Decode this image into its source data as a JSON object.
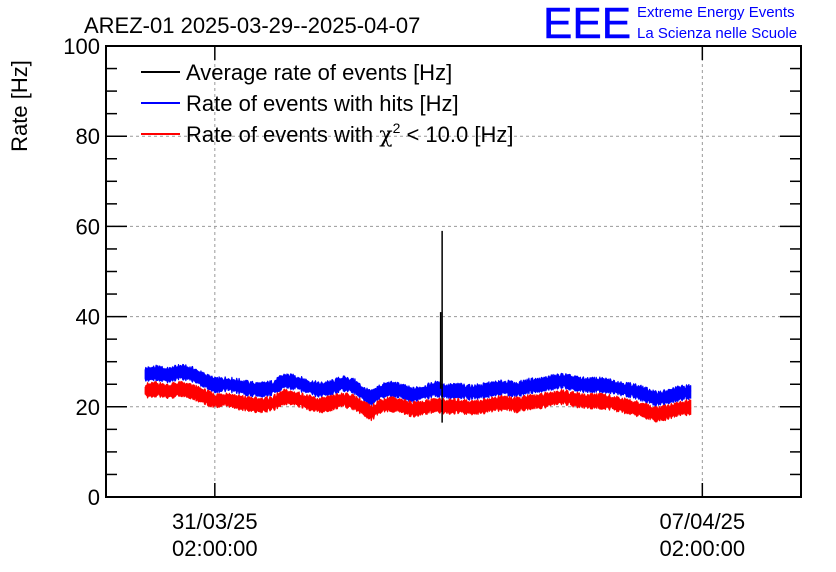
{
  "chart_data": {
    "type": "line",
    "title": "AREZ-01 2025-03-29--2025-04-07",
    "ylabel": "Rate [Hz]",
    "xlabel": "",
    "ylim": [
      0,
      100
    ],
    "yticks": [
      0,
      20,
      40,
      60,
      80,
      100
    ],
    "xlim": [
      "2025-03-29T12:30:00",
      "2025-04-08T12:00:00"
    ],
    "xticks": [
      {
        "date": "2025-03-31T02:00:00",
        "line1": "31/03/25",
        "line2": "02:00:00"
      },
      {
        "date": "2025-04-07T02:00:00",
        "line1": "07/04/25",
        "line2": "02:00:00"
      }
    ],
    "grid": true,
    "legend_position": "top-left",
    "legend": [
      {
        "label": "Average rate of events [Hz]",
        "color": "#000000"
      },
      {
        "label": "Rate of events with hits [Hz]",
        "color": "#0000ff"
      },
      {
        "label_prefix": "Rate of events with ",
        "label_symbol": "χ",
        "label_sup": "2",
        "label_suffix": " < 10.0 [Hz]",
        "color": "#ff0000"
      }
    ],
    "series": [
      {
        "name": "Rate of events with hits [Hz]",
        "color": "#0000ff",
        "band": 2.5,
        "points": [
          [
            "2025-03-30T02:00:00",
            27.2
          ],
          [
            "2025-03-30T06:00:00",
            27.5
          ],
          [
            "2025-03-30T10:00:00",
            27.0
          ],
          [
            "2025-03-30T14:00:00",
            27.8
          ],
          [
            "2025-03-30T18:00:00",
            27.3
          ],
          [
            "2025-03-30T22:00:00",
            26.0
          ],
          [
            "2025-03-31T02:00:00",
            24.8
          ],
          [
            "2025-03-31T06:00:00",
            25.0
          ],
          [
            "2025-03-31T10:00:00",
            24.6
          ],
          [
            "2025-03-31T14:00:00",
            24.0
          ],
          [
            "2025-03-31T18:00:00",
            23.8
          ],
          [
            "2025-03-31T22:00:00",
            24.2
          ],
          [
            "2025-04-01T02:00:00",
            25.8
          ],
          [
            "2025-04-01T06:00:00",
            25.4
          ],
          [
            "2025-04-01T10:00:00",
            24.5
          ],
          [
            "2025-04-01T14:00:00",
            23.8
          ],
          [
            "2025-04-01T18:00:00",
            24.2
          ],
          [
            "2025-04-01T22:00:00",
            25.2
          ],
          [
            "2025-04-02T02:00:00",
            24.6
          ],
          [
            "2025-04-02T06:00:00",
            22.5
          ],
          [
            "2025-04-02T08:00:00",
            22.0
          ],
          [
            "2025-04-02T10:30:00",
            23.2
          ],
          [
            "2025-04-02T14:00:00",
            24.0
          ],
          [
            "2025-04-02T18:00:00",
            23.6
          ],
          [
            "2025-04-02T22:00:00",
            22.6
          ],
          [
            "2025-04-03T02:00:00",
            23.2
          ],
          [
            "2025-04-03T06:00:00",
            24.0
          ],
          [
            "2025-04-03T10:00:00",
            23.4
          ],
          [
            "2025-04-03T14:00:00",
            23.6
          ],
          [
            "2025-04-03T18:00:00",
            23.2
          ],
          [
            "2025-04-03T22:00:00",
            23.5
          ],
          [
            "2025-04-04T02:00:00",
            24.0
          ],
          [
            "2025-04-04T06:00:00",
            24.3
          ],
          [
            "2025-04-04T10:00:00",
            23.8
          ],
          [
            "2025-04-04T14:00:00",
            24.6
          ],
          [
            "2025-04-04T18:00:00",
            24.8
          ],
          [
            "2025-04-04T22:00:00",
            25.4
          ],
          [
            "2025-04-05T02:00:00",
            25.8
          ],
          [
            "2025-04-05T06:00:00",
            25.2
          ],
          [
            "2025-04-05T10:00:00",
            24.8
          ],
          [
            "2025-04-05T14:00:00",
            24.9
          ],
          [
            "2025-04-05T18:00:00",
            24.6
          ],
          [
            "2025-04-05T22:00:00",
            24.0
          ],
          [
            "2025-04-06T02:00:00",
            23.6
          ],
          [
            "2025-04-06T06:00:00",
            22.8
          ],
          [
            "2025-04-06T10:00:00",
            21.8
          ],
          [
            "2025-04-06T14:00:00",
            22.2
          ],
          [
            "2025-04-06T18:00:00",
            23.0
          ],
          [
            "2025-04-06T22:00:00",
            23.3
          ]
        ]
      },
      {
        "name": "",
        "color": "#ff0000",
        "band": 2.5,
        "points": [
          [
            "2025-03-30T02:00:00",
            23.6
          ],
          [
            "2025-03-30T06:00:00",
            23.9
          ],
          [
            "2025-03-30T10:00:00",
            23.4
          ],
          [
            "2025-03-30T14:00:00",
            24.0
          ],
          [
            "2025-03-30T18:00:00",
            23.4
          ],
          [
            "2025-03-30T22:00:00",
            22.4
          ],
          [
            "2025-03-31T02:00:00",
            21.3
          ],
          [
            "2025-03-31T06:00:00",
            21.6
          ],
          [
            "2025-03-31T10:00:00",
            21.0
          ],
          [
            "2025-03-31T14:00:00",
            20.6
          ],
          [
            "2025-03-31T18:00:00",
            20.3
          ],
          [
            "2025-03-31T22:00:00",
            20.8
          ],
          [
            "2025-04-01T02:00:00",
            22.2
          ],
          [
            "2025-04-01T06:00:00",
            21.8
          ],
          [
            "2025-04-01T10:00:00",
            21.0
          ],
          [
            "2025-04-01T14:00:00",
            20.3
          ],
          [
            "2025-04-01T18:00:00",
            20.8
          ],
          [
            "2025-04-01T22:00:00",
            21.6
          ],
          [
            "2025-04-02T02:00:00",
            21.0
          ],
          [
            "2025-04-02T06:00:00",
            19.4
          ],
          [
            "2025-04-02T08:00:00",
            18.6
          ],
          [
            "2025-04-02T10:30:00",
            20.0
          ],
          [
            "2025-04-02T14:00:00",
            20.6
          ],
          [
            "2025-04-02T18:00:00",
            20.3
          ],
          [
            "2025-04-02T22:00:00",
            19.4
          ],
          [
            "2025-04-03T02:00:00",
            19.8
          ],
          [
            "2025-04-03T06:00:00",
            20.4
          ],
          [
            "2025-04-03T10:00:00",
            20.0
          ],
          [
            "2025-04-03T14:00:00",
            20.2
          ],
          [
            "2025-04-03T18:00:00",
            19.8
          ],
          [
            "2025-04-03T22:00:00",
            20.0
          ],
          [
            "2025-04-04T02:00:00",
            20.6
          ],
          [
            "2025-04-04T06:00:00",
            20.9
          ],
          [
            "2025-04-04T10:00:00",
            20.4
          ],
          [
            "2025-04-04T14:00:00",
            21.0
          ],
          [
            "2025-04-04T18:00:00",
            21.2
          ],
          [
            "2025-04-04T22:00:00",
            21.8
          ],
          [
            "2025-04-05T02:00:00",
            22.2
          ],
          [
            "2025-04-05T06:00:00",
            21.6
          ],
          [
            "2025-04-05T10:00:00",
            21.2
          ],
          [
            "2025-04-05T14:00:00",
            21.3
          ],
          [
            "2025-04-05T18:00:00",
            21.0
          ],
          [
            "2025-04-05T22:00:00",
            20.4
          ],
          [
            "2025-04-06T02:00:00",
            19.8
          ],
          [
            "2025-04-06T06:00:00",
            19.2
          ],
          [
            "2025-04-06T10:00:00",
            18.3
          ],
          [
            "2025-04-06T14:00:00",
            18.8
          ],
          [
            "2025-04-06T18:00:00",
            19.6
          ],
          [
            "2025-04-06T22:00:00",
            19.9
          ]
        ]
      },
      {
        "name": "Average rate of events [Hz]",
        "color": "#000000",
        "spike": {
          "date": "2025-04-03T08:20:00",
          "max": 59,
          "secondary": 41,
          "min": 16.5
        }
      }
    ]
  },
  "logo": {
    "letters": "EEE",
    "line1": "Extreme Energy Events",
    "line2": "La Scienza nelle Scuole",
    "color": "#0000ff"
  }
}
